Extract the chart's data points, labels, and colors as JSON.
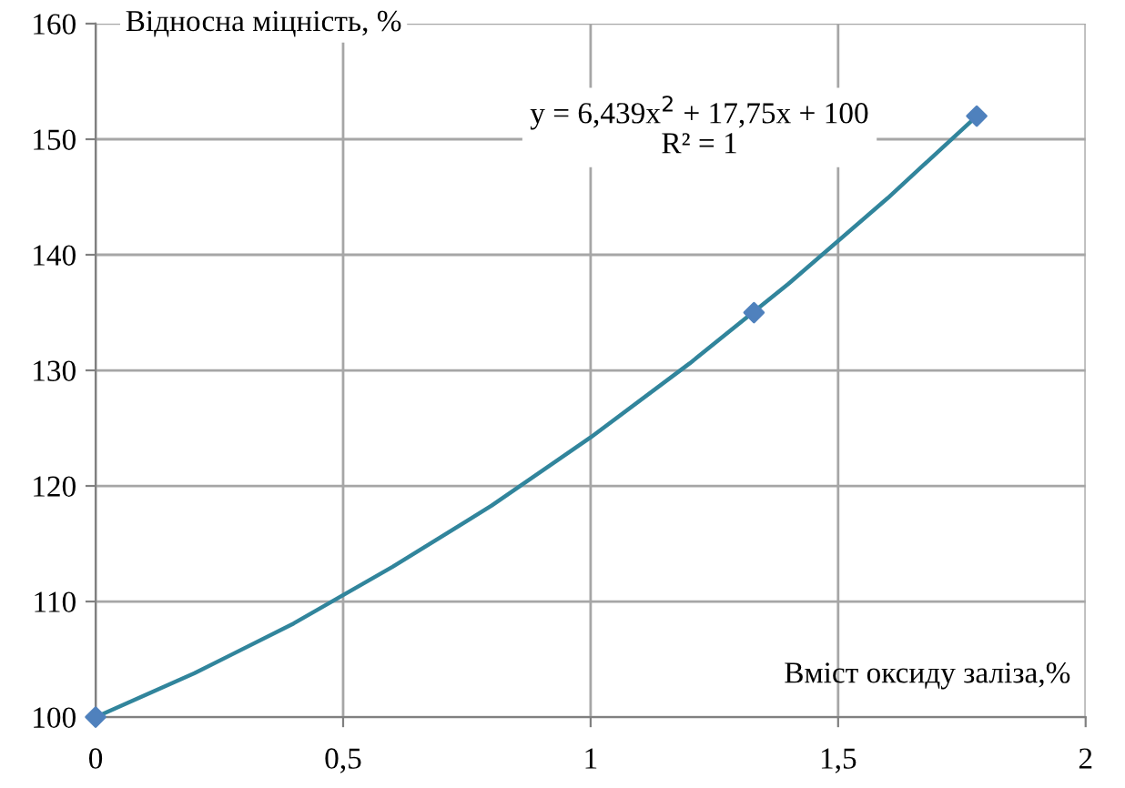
{
  "chart_data": {
    "type": "scatter",
    "xlabel": "Вміст оксиду заліза,%",
    "ylabel": "Відносна міцність, %",
    "xlim": [
      0,
      2
    ],
    "ylim": [
      100,
      160
    ],
    "xticks": [
      0,
      {
        "value": 0.5,
        "label": "0,5"
      },
      1,
      {
        "value": 1.5,
        "label": "1,5"
      },
      2
    ],
    "yticks": [
      100,
      110,
      120,
      130,
      140,
      150,
      160
    ],
    "grid": true,
    "legend": false,
    "annotations": [
      "y = 6,439x$^{2}$ + 17,75x + 100\nR² = 1"
    ],
    "series": [
      {
        "type": "line",
        "color": "#31859c",
        "marker": "none",
        "line_style": "solid",
        "x": [
          0,
          0.2,
          0.4,
          0.6,
          0.8,
          1.0,
          1.2,
          1.4,
          1.6,
          1.78
        ],
        "values": [
          100,
          103.8,
          108.1,
          113,
          118.3,
          124.2,
          130.6,
          137.5,
          144.9,
          152
        ]
      },
      {
        "color": "#4f81bd",
        "marker": "diamond",
        "x": [
          0,
          1.33,
          1.78
        ],
        "values": [
          100,
          135,
          152
        ]
      }
    ]
  }
}
